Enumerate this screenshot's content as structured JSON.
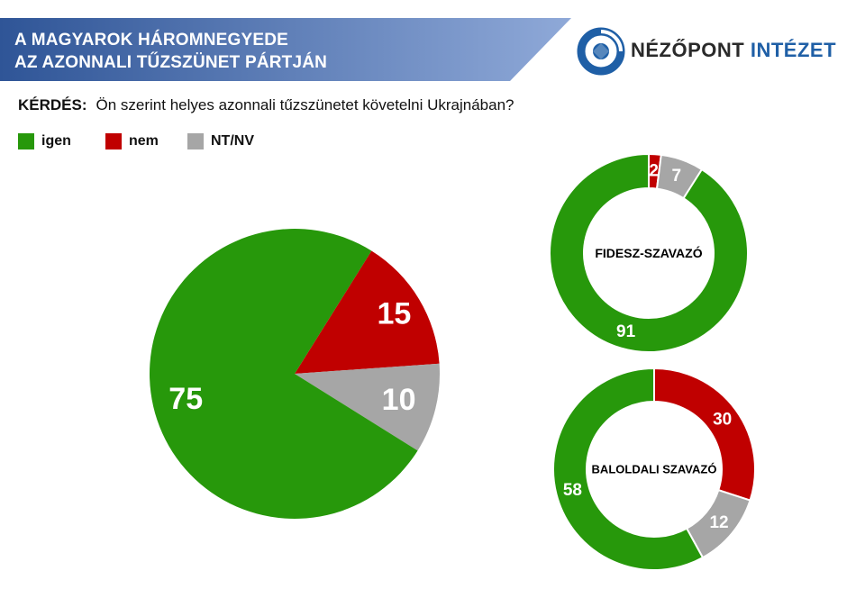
{
  "header": {
    "title_line1": "A MAGYAROK HÁROMNEGYEDE",
    "title_line2": "AZ AZONNALI TŰZSZÜNET PÁRTJÁN",
    "colors": {
      "banner_left": "#2f5597",
      "banner_right": "#8fa9d8"
    }
  },
  "logo": {
    "name_part1": "NÉZŐPONT",
    "name_part2": "INTÉZET",
    "icon": "nezopont-logo-icon",
    "color": "#1f5fa6"
  },
  "question": {
    "label": "KÉRDÉS:",
    "text": "Ön szerint helyes azonnali tűzszünetet követelni Ukrajnában?"
  },
  "legend": [
    {
      "label": "igen",
      "color": "#27980b"
    },
    {
      "label": "nem",
      "color": "#c00000"
    },
    {
      "label": "NT/NV",
      "color": "#a6a6a6"
    }
  ],
  "chart_data": [
    {
      "type": "pie",
      "title": "",
      "categories": [
        "igen",
        "nem",
        "NT/NV"
      ],
      "values": [
        75,
        15,
        10
      ],
      "colors": [
        "#27980b",
        "#c00000",
        "#a6a6a6"
      ]
    },
    {
      "type": "pie",
      "donut": true,
      "title": "FIDESZ-SZAVAZÓ",
      "categories": [
        "igen",
        "nem",
        "NT/NV"
      ],
      "values": [
        91,
        2,
        7
      ],
      "colors": [
        "#27980b",
        "#c00000",
        "#a6a6a6"
      ]
    },
    {
      "type": "pie",
      "donut": true,
      "title": "BALOLDALI SZAVAZÓ",
      "categories": [
        "igen",
        "nem",
        "NT/NV"
      ],
      "values": [
        58,
        30,
        12
      ],
      "colors": [
        "#27980b",
        "#c00000",
        "#a6a6a6"
      ]
    }
  ]
}
